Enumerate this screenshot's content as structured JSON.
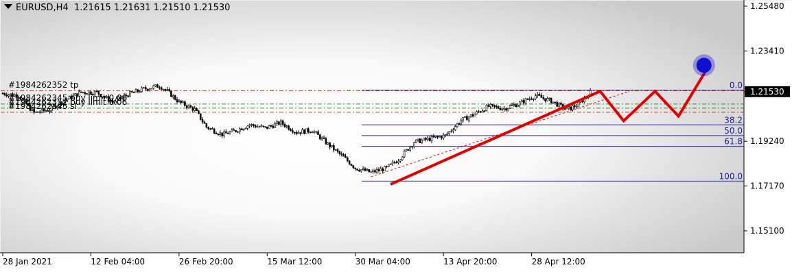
{
  "header": {
    "symbol": "EURUSD,H4",
    "ohlc": "1.21615 1.21631 1.21510 1.21530"
  },
  "order_labels": [
    {
      "text": "#1984262352 tp",
      "price": 1.2157
    },
    {
      "text": "#1984262345 buy limit 0.06",
      "price": 1.2096
    },
    {
      "text": "#1984262352 buy limit 0.06",
      "price": 1.2077
    },
    {
      "text": "#1984262345 sl",
      "price": 1.2058
    }
  ],
  "colors": {
    "candle": "#000000",
    "order_tp_sl": "#e0301e",
    "order_limit": "#2e8b2e",
    "fib": "#1c1c96",
    "forecast": "#e50000",
    "marker": "#1010d0",
    "price_tag": "#000000"
  },
  "chart_data": {
    "type": "candlestick",
    "y_ticks": [
      1.2548,
      1.2341,
      1.2153,
      1.1924,
      1.1717,
      1.151
    ],
    "current_price": "1.21530",
    "x_ticks": [
      "28 Jan 2021",
      "12 Feb 04:00",
      "26 Feb 20:00",
      "15 Mar 12:00",
      "30 Mar 04:00",
      "13 Apr 20:00",
      "28 Apr 12:00"
    ],
    "x_tick_index": [
      0,
      45,
      90,
      135,
      180,
      225,
      270
    ],
    "close_path": [
      [
        0,
        1.2145
      ],
      [
        8,
        1.2135
      ],
      [
        16,
        1.2055
      ],
      [
        24,
        1.207
      ],
      [
        32,
        1.2115
      ],
      [
        40,
        1.215
      ],
      [
        48,
        1.215
      ],
      [
        56,
        1.2105
      ],
      [
        64,
        1.214
      ],
      [
        72,
        1.2165
      ],
      [
        80,
        1.218
      ],
      [
        84,
        1.2155
      ],
      [
        90,
        1.2105
      ],
      [
        98,
        1.207
      ],
      [
        104,
        1.199
      ],
      [
        112,
        1.1955
      ],
      [
        118,
        1.197
      ],
      [
        126,
        1.2
      ],
      [
        134,
        1.1985
      ],
      [
        142,
        1.201
      ],
      [
        150,
        1.1965
      ],
      [
        158,
        1.1975
      ],
      [
        166,
        1.191
      ],
      [
        174,
        1.185
      ],
      [
        180,
        1.18
      ],
      [
        188,
        1.178
      ],
      [
        196,
        1.18
      ],
      [
        202,
        1.184
      ],
      [
        210,
        1.192
      ],
      [
        218,
        1.1935
      ],
      [
        226,
        1.195
      ],
      [
        234,
        1.202
      ],
      [
        240,
        1.2045
      ],
      [
        248,
        1.2085
      ],
      [
        256,
        1.2075
      ],
      [
        264,
        1.21
      ],
      [
        272,
        1.2135
      ],
      [
        280,
        1.211
      ],
      [
        288,
        1.207
      ],
      [
        294,
        1.2095
      ],
      [
        300,
        1.215
      ]
    ],
    "fibonacci": {
      "high": 1.216,
      "low": 1.174,
      "levels": [
        "0.0",
        "38.2",
        "50.0",
        "61.8",
        "100.0"
      ]
    },
    "forecast_path": [
      [
        198,
        1.1725
      ],
      [
        305,
        1.2155
      ],
      [
        317,
        1.2018
      ],
      [
        333,
        1.2155
      ],
      [
        345,
        1.204
      ],
      [
        360,
        1.2265
      ]
    ],
    "trendline": [
      [
        188,
        1.176
      ],
      [
        320,
        1.2155
      ]
    ],
    "marker_point": [
      358,
      1.2275
    ]
  }
}
